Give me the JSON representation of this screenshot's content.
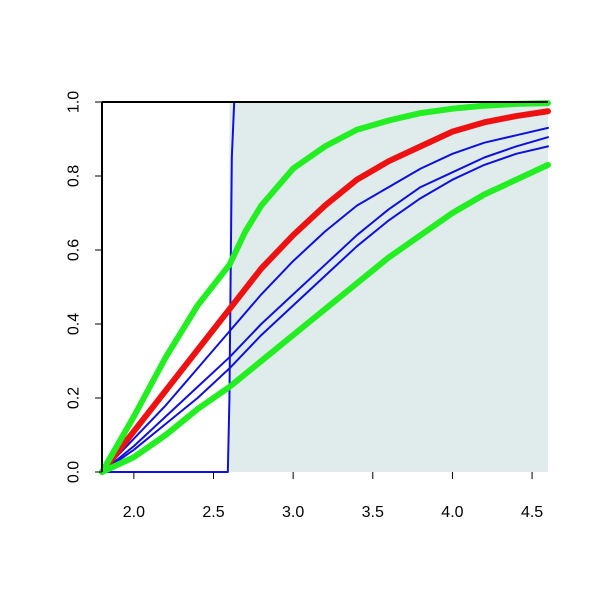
{
  "chart_data": {
    "type": "line",
    "title": "",
    "xlabel": "",
    "ylabel": "",
    "xlim": [
      1.8,
      4.6
    ],
    "ylim": [
      0.0,
      1.0
    ],
    "x_ticks": [
      "2.0",
      "2.5",
      "3.0",
      "3.5",
      "4.0",
      "4.5"
    ],
    "y_ticks": [
      "0.0",
      "0.2",
      "0.4",
      "0.6",
      "0.8",
      "1.0"
    ],
    "grid": false,
    "legend": "none",
    "shaded_region": {
      "x_from": 2.6,
      "x_to": 4.6,
      "color": "#dfeceb"
    },
    "colors": {
      "blue": "#1010dd",
      "green": "#22ee22",
      "red": "#ee1111"
    },
    "series": [
      {
        "color": "blue",
        "width": 2,
        "points": [
          [
            1.8,
            0.0
          ],
          [
            2.59,
            0.0
          ],
          [
            2.6,
            0.2
          ],
          [
            2.615,
            0.85
          ],
          [
            2.63,
            1.0
          ],
          [
            4.6,
            1.0
          ]
        ]
      },
      {
        "color": "blue",
        "width": 2,
        "points": [
          [
            1.8,
            0.0
          ],
          [
            2.0,
            0.09
          ],
          [
            2.2,
            0.18
          ],
          [
            2.4,
            0.28
          ],
          [
            2.6,
            0.38
          ],
          [
            2.8,
            0.48
          ],
          [
            3.0,
            0.57
          ],
          [
            3.2,
            0.65
          ],
          [
            3.4,
            0.72
          ],
          [
            3.6,
            0.77
          ],
          [
            3.8,
            0.82
          ],
          [
            4.0,
            0.86
          ],
          [
            4.2,
            0.89
          ],
          [
            4.4,
            0.91
          ],
          [
            4.6,
            0.93
          ]
        ]
      },
      {
        "color": "blue",
        "width": 2,
        "points": [
          [
            1.8,
            0.0
          ],
          [
            2.0,
            0.07
          ],
          [
            2.2,
            0.15
          ],
          [
            2.4,
            0.23
          ],
          [
            2.6,
            0.31
          ],
          [
            2.8,
            0.4
          ],
          [
            3.0,
            0.48
          ],
          [
            3.2,
            0.56
          ],
          [
            3.4,
            0.64
          ],
          [
            3.6,
            0.71
          ],
          [
            3.8,
            0.77
          ],
          [
            4.0,
            0.81
          ],
          [
            4.2,
            0.85
          ],
          [
            4.4,
            0.88
          ],
          [
            4.6,
            0.905
          ]
        ]
      },
      {
        "color": "blue",
        "width": 2,
        "points": [
          [
            1.8,
            0.0
          ],
          [
            2.0,
            0.06
          ],
          [
            2.2,
            0.13
          ],
          [
            2.4,
            0.2
          ],
          [
            2.6,
            0.28
          ],
          [
            2.8,
            0.37
          ],
          [
            3.0,
            0.45
          ],
          [
            3.2,
            0.53
          ],
          [
            3.4,
            0.61
          ],
          [
            3.6,
            0.68
          ],
          [
            3.8,
            0.74
          ],
          [
            4.0,
            0.79
          ],
          [
            4.2,
            0.83
          ],
          [
            4.4,
            0.86
          ],
          [
            4.6,
            0.88
          ]
        ]
      },
      {
        "color": "red",
        "width": 6,
        "points": [
          [
            1.8,
            0.0
          ],
          [
            2.0,
            0.11
          ],
          [
            2.2,
            0.22
          ],
          [
            2.4,
            0.33
          ],
          [
            2.6,
            0.44
          ],
          [
            2.8,
            0.55
          ],
          [
            3.0,
            0.64
          ],
          [
            3.2,
            0.72
          ],
          [
            3.4,
            0.79
          ],
          [
            3.6,
            0.84
          ],
          [
            3.8,
            0.88
          ],
          [
            4.0,
            0.92
          ],
          [
            4.2,
            0.945
          ],
          [
            4.4,
            0.962
          ],
          [
            4.6,
            0.975
          ]
        ]
      },
      {
        "color": "green",
        "width": 6,
        "points": [
          [
            1.8,
            0.0
          ],
          [
            2.0,
            0.15
          ],
          [
            2.2,
            0.31
          ],
          [
            2.4,
            0.45
          ],
          [
            2.6,
            0.56
          ],
          [
            2.7,
            0.65
          ],
          [
            2.8,
            0.72
          ],
          [
            3.0,
            0.82
          ],
          [
            3.2,
            0.88
          ],
          [
            3.4,
            0.925
          ],
          [
            3.6,
            0.95
          ],
          [
            3.8,
            0.97
          ],
          [
            4.0,
            0.982
          ],
          [
            4.2,
            0.99
          ],
          [
            4.4,
            0.995
          ],
          [
            4.6,
            0.997
          ]
        ]
      },
      {
        "color": "green",
        "width": 6,
        "points": [
          [
            1.8,
            0.0
          ],
          [
            2.0,
            0.04
          ],
          [
            2.2,
            0.1
          ],
          [
            2.4,
            0.17
          ],
          [
            2.6,
            0.23
          ],
          [
            2.8,
            0.3
          ],
          [
            3.0,
            0.37
          ],
          [
            3.2,
            0.44
          ],
          [
            3.4,
            0.51
          ],
          [
            3.6,
            0.58
          ],
          [
            3.8,
            0.64
          ],
          [
            4.0,
            0.7
          ],
          [
            4.2,
            0.75
          ],
          [
            4.4,
            0.79
          ],
          [
            4.6,
            0.83
          ]
        ]
      }
    ]
  }
}
